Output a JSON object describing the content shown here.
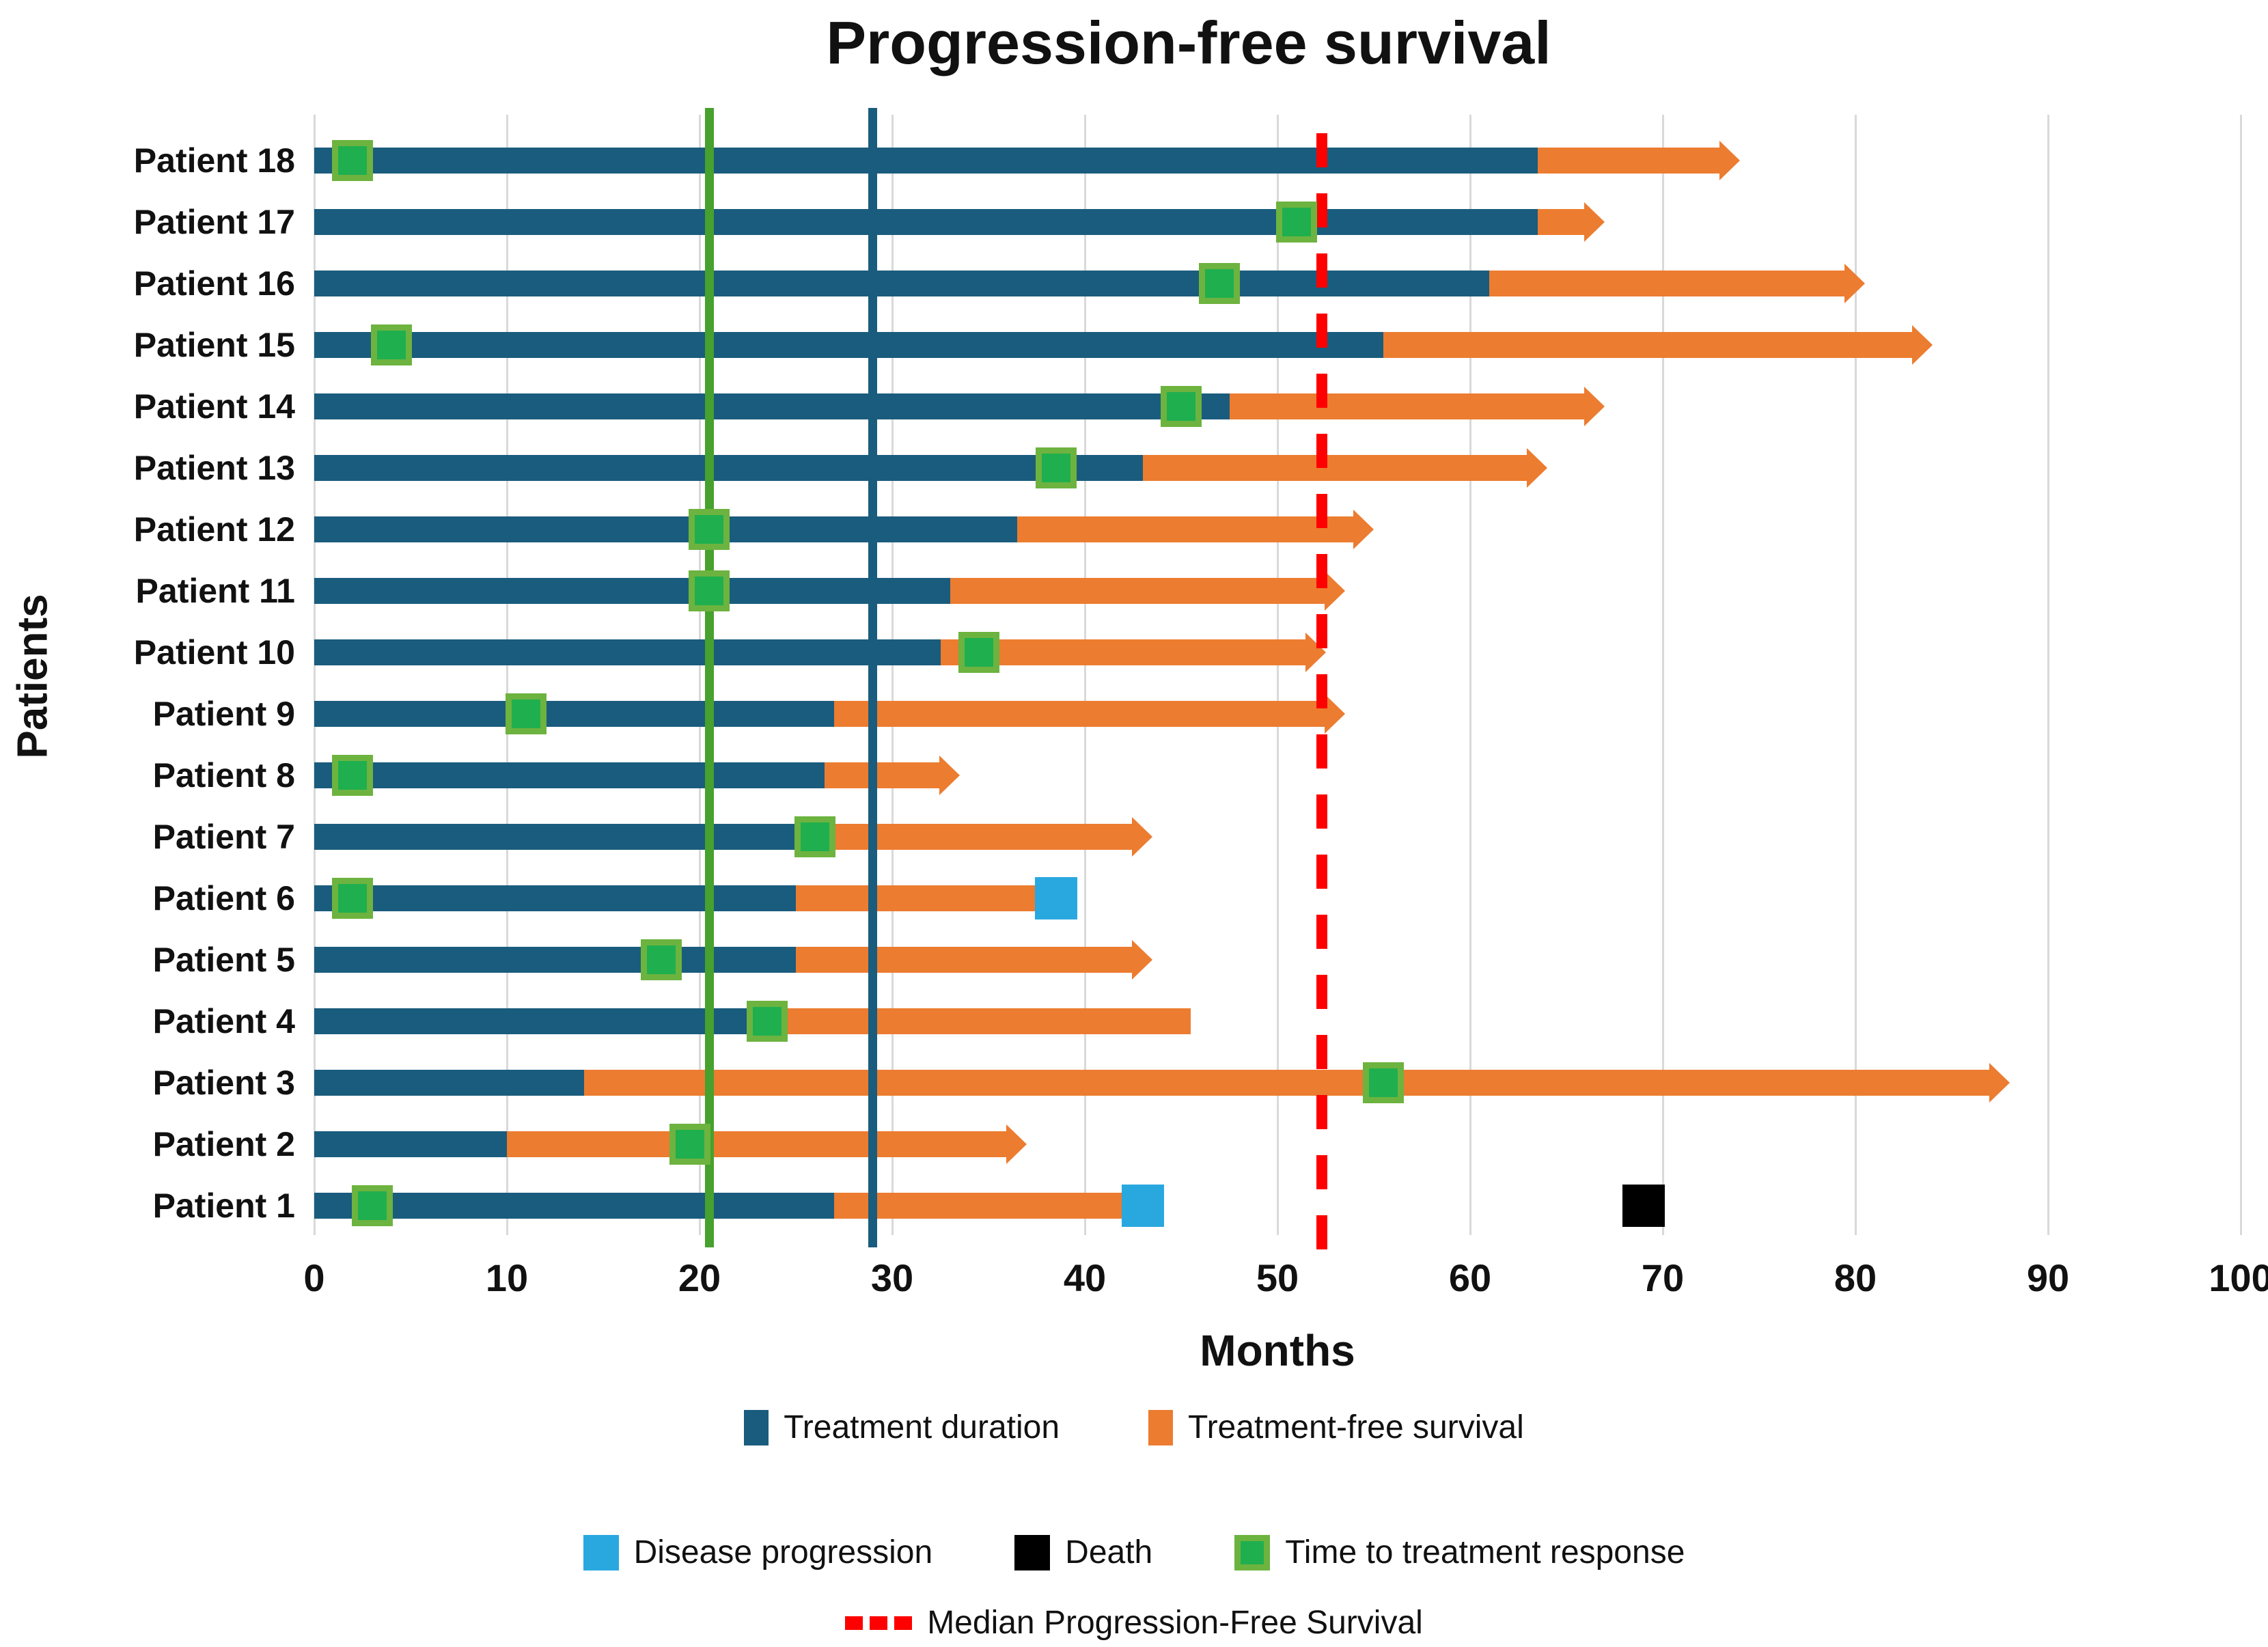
{
  "title": "Progression-free survival",
  "x_axis": {
    "label": "Months",
    "min": 0,
    "max": 100,
    "tick_step": 10
  },
  "y_axis": {
    "label": "Patients"
  },
  "legend": {
    "treatment_duration": "Treatment duration",
    "treatment_free_survival": "Treatment-free survival",
    "disease_progression": "Disease progression",
    "death": "Death",
    "time_to_response": "Time to treatment response",
    "median_pfs": "Median Progression-Free Survival"
  },
  "colors": {
    "treatment": "#1A5C7D",
    "survival": "#EC7C30",
    "response_fill": "#1FAF4F",
    "response_border": "#6DB33F",
    "progression": "#29A8E0",
    "death": "#000000",
    "median_line": "#FE0000",
    "green_line": "#46A12E",
    "teal_line": "#1A5C7D",
    "gridline": "#D9D9D9"
  },
  "chart_data": {
    "type": "bar",
    "orientation": "horizontal-swimmer",
    "title": "Progression-free survival",
    "xlabel": "Months",
    "ylabel": "Patients",
    "xlim": [
      0,
      100
    ],
    "x_ticks": [
      0,
      10,
      20,
      30,
      40,
      50,
      60,
      70,
      80,
      90,
      100
    ],
    "grid": "vertical",
    "legend_position": "bottom",
    "categories": [
      "Patient 18",
      "Patient 17",
      "Patient 16",
      "Patient 15",
      "Patient 14",
      "Patient 13",
      "Patient 12",
      "Patient 11",
      "Patient 10",
      "Patient 9",
      "Patient 8",
      "Patient 7",
      "Patient 6",
      "Patient 5",
      "Patient 4",
      "Patient 3",
      "Patient 2",
      "Patient 1"
    ],
    "series_note": "treatment_duration = teal segment end (months); survival_end = orange segment end; ongoing_arrow = bar ends with arrowhead; time_to_response = green square; disease_progression = blue square; death = black square",
    "patients": [
      {
        "label": "Patient 18",
        "treatment_duration": 63.5,
        "survival_end": 74,
        "ongoing_arrow": true,
        "time_to_response": 2,
        "disease_progression": null,
        "death": null
      },
      {
        "label": "Patient 17",
        "treatment_duration": 63.5,
        "survival_end": 67,
        "ongoing_arrow": true,
        "time_to_response": 51,
        "disease_progression": null,
        "death": null
      },
      {
        "label": "Patient 16",
        "treatment_duration": 61,
        "survival_end": 80.5,
        "ongoing_arrow": true,
        "time_to_response": 47,
        "disease_progression": null,
        "death": null
      },
      {
        "label": "Patient 15",
        "treatment_duration": 55.5,
        "survival_end": 84,
        "ongoing_arrow": true,
        "time_to_response": 4,
        "disease_progression": null,
        "death": null
      },
      {
        "label": "Patient 14",
        "treatment_duration": 47.5,
        "survival_end": 67,
        "ongoing_arrow": true,
        "time_to_response": 45,
        "disease_progression": null,
        "death": null
      },
      {
        "label": "Patient 13",
        "treatment_duration": 43,
        "survival_end": 64,
        "ongoing_arrow": true,
        "time_to_response": 38.5,
        "disease_progression": null,
        "death": null
      },
      {
        "label": "Patient 12",
        "treatment_duration": 36.5,
        "survival_end": 55,
        "ongoing_arrow": true,
        "time_to_response": 20.5,
        "disease_progression": null,
        "death": null
      },
      {
        "label": "Patient 11",
        "treatment_duration": 33,
        "survival_end": 53.5,
        "ongoing_arrow": true,
        "time_to_response": 20.5,
        "disease_progression": null,
        "death": null
      },
      {
        "label": "Patient 10",
        "treatment_duration": 32.5,
        "survival_end": 52.5,
        "ongoing_arrow": true,
        "time_to_response": 34.5,
        "disease_progression": null,
        "death": null
      },
      {
        "label": "Patient 9",
        "treatment_duration": 27,
        "survival_end": 53.5,
        "ongoing_arrow": true,
        "time_to_response": 11,
        "disease_progression": null,
        "death": null
      },
      {
        "label": "Patient 8",
        "treatment_duration": 26.5,
        "survival_end": 33.5,
        "ongoing_arrow": true,
        "time_to_response": 2,
        "disease_progression": null,
        "death": null
      },
      {
        "label": "Patient 7",
        "treatment_duration": 26,
        "survival_end": 43.5,
        "ongoing_arrow": true,
        "time_to_response": 26,
        "disease_progression": null,
        "death": null
      },
      {
        "label": "Patient 6",
        "treatment_duration": 25,
        "survival_end": 37.5,
        "ongoing_arrow": false,
        "time_to_response": 2,
        "disease_progression": 38.5,
        "death": null
      },
      {
        "label": "Patient 5",
        "treatment_duration": 25,
        "survival_end": 43.5,
        "ongoing_arrow": true,
        "time_to_response": 18,
        "disease_progression": null,
        "death": null
      },
      {
        "label": "Patient 4",
        "treatment_duration": 23.5,
        "survival_end": 45.5,
        "ongoing_arrow": false,
        "time_to_response": 23.5,
        "disease_progression": null,
        "death": null
      },
      {
        "label": "Patient 3",
        "treatment_duration": 14,
        "survival_end": 88,
        "ongoing_arrow": true,
        "time_to_response": 55.5,
        "disease_progression": null,
        "death": null
      },
      {
        "label": "Patient 2",
        "treatment_duration": 10,
        "survival_end": 37,
        "ongoing_arrow": true,
        "time_to_response": 19.5,
        "disease_progression": null,
        "death": null
      },
      {
        "label": "Patient 1",
        "treatment_duration": 27,
        "survival_end": 42.5,
        "ongoing_arrow": false,
        "time_to_response": 3,
        "disease_progression": 43,
        "death": 69
      }
    ],
    "reference_lines": [
      {
        "name": "green-reference-line",
        "x": 20.5,
        "style": "solid",
        "color": "#46A12E"
      },
      {
        "name": "teal-reference-line",
        "x": 29,
        "style": "solid",
        "color": "#1A5C7D"
      },
      {
        "name": "median-progression-free-survival",
        "x": 52.3,
        "style": "dashed",
        "color": "#FE0000"
      }
    ]
  }
}
